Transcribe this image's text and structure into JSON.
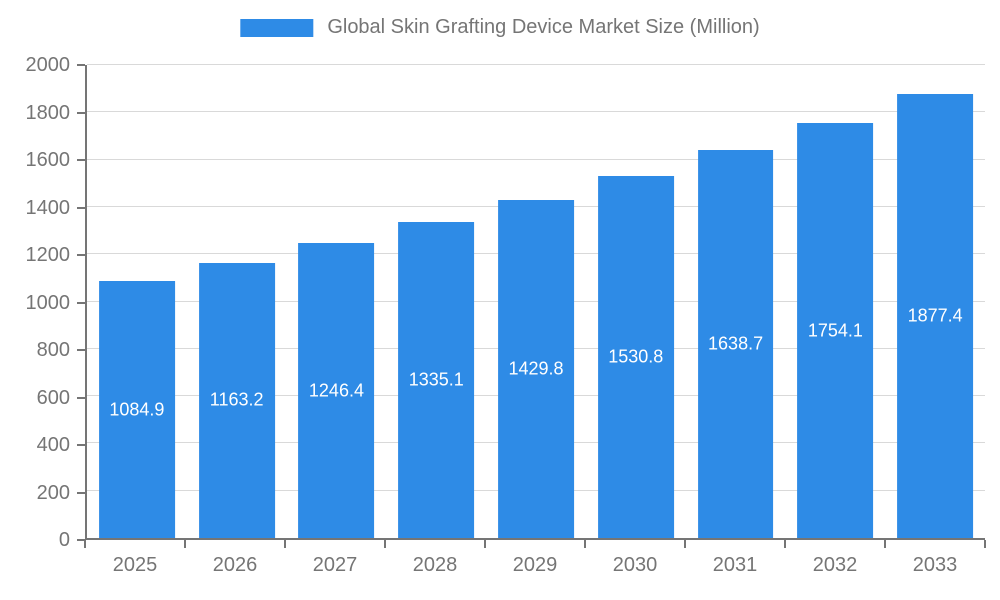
{
  "chart_data": {
    "type": "bar",
    "title": "Global Skin Grafting Device Market Size (Million)",
    "categories": [
      "2025",
      "2026",
      "2027",
      "2028",
      "2029",
      "2030",
      "2031",
      "2032",
      "2033"
    ],
    "values": [
      1084.9,
      1163.2,
      1246.4,
      1335.1,
      1429.8,
      1530.8,
      1638.7,
      1754.1,
      1877.4
    ],
    "xlabel": "",
    "ylabel": "",
    "ylim": [
      0,
      2000
    ],
    "ytick_step": 200,
    "bar_color": "#2e8be6",
    "value_label_color": "#ffffff",
    "axis_text_color": "#757575",
    "grid_color": "#d9d9d9",
    "grid": "horizontal",
    "legend_position": "top",
    "legend_entries": [
      "Global Skin Grafting Device Market Size (Million)"
    ]
  }
}
